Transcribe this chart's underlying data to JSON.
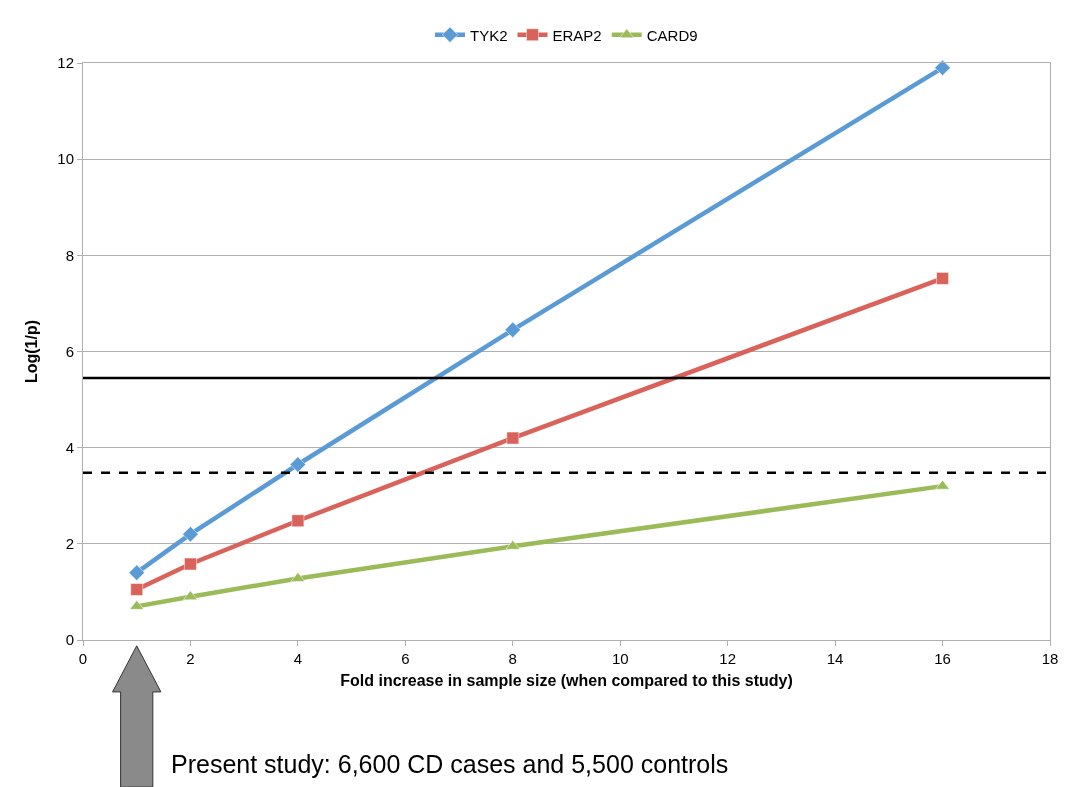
{
  "chart_data": {
    "type": "line",
    "xlabel": "Fold increase in sample size (when compared to this study)",
    "ylabel": "Log(1/p)",
    "x": [
      1,
      2,
      4,
      8,
      16
    ],
    "series": [
      {
        "name": "TYK2",
        "color": "#5b9bd5",
        "marker": "diamond",
        "values": [
          1.4,
          2.2,
          3.65,
          6.45,
          11.9
        ]
      },
      {
        "name": "ERAP2",
        "color": "#d9625a",
        "marker": "square",
        "values": [
          1.05,
          1.58,
          2.48,
          4.2,
          7.52
        ]
      },
      {
        "name": "CARD9",
        "color": "#9bbb59",
        "marker": "triangle",
        "values": [
          0.7,
          0.9,
          1.28,
          1.95,
          3.2
        ]
      }
    ],
    "xlim": [
      0,
      18
    ],
    "xticks": [
      0,
      2,
      4,
      6,
      8,
      10,
      12,
      14,
      16,
      18
    ],
    "ylim": [
      0,
      12
    ],
    "yticks": [
      0,
      2,
      4,
      6,
      8,
      10,
      12
    ],
    "grid": "y",
    "legend": "top",
    "line_style": "solid",
    "ref_lines": [
      {
        "axis": "y",
        "value": 5.45,
        "color": "#000000",
        "line_style": "solid"
      },
      {
        "axis": "y",
        "value": 3.48,
        "color": "#000000",
        "line_style": "dashed"
      }
    ],
    "annotations": [
      "Present study: 6,600 CD cases and 5,500 controls"
    ]
  }
}
